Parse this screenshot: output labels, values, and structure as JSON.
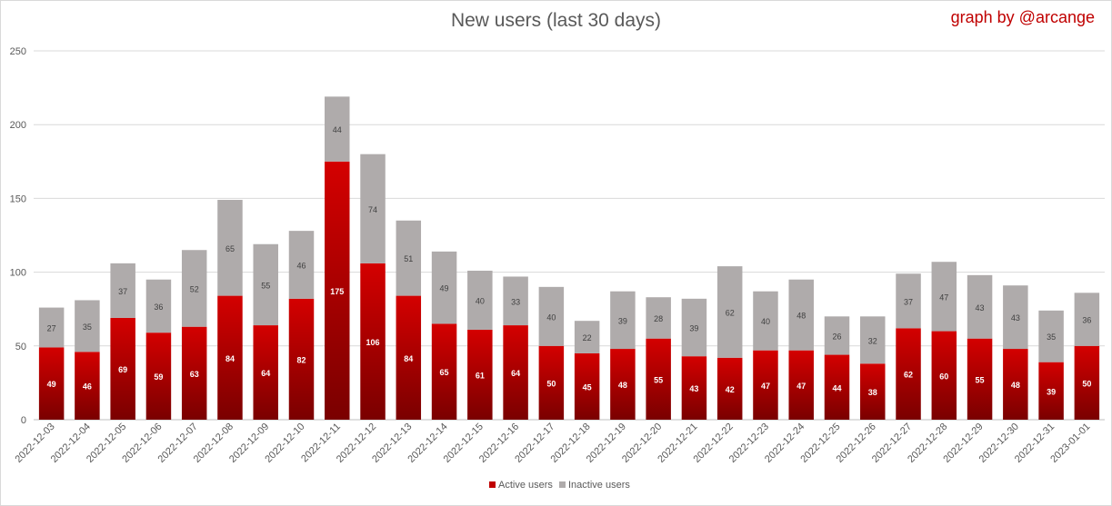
{
  "chart_data": {
    "type": "bar",
    "stacked": true,
    "title": "New users (last 30 days)",
    "credit": "graph by @arcange",
    "categories": [
      "2022-12-03",
      "2022-12-04",
      "2022-12-05",
      "2022-12-06",
      "2022-12-07",
      "2022-12-08",
      "2022-12-09",
      "2022-12-10",
      "2022-12-11",
      "2022-12-12",
      "2022-12-13",
      "2022-12-14",
      "2022-12-15",
      "2022-12-16",
      "2022-12-17",
      "2022-12-18",
      "2022-12-19",
      "2022-12-20",
      "2022-12-21",
      "2022-12-22",
      "2022-12-23",
      "2022-12-24",
      "2022-12-25",
      "2022-12-26",
      "2022-12-27",
      "2022-12-28",
      "2022-12-29",
      "2022-12-30",
      "2022-12-31",
      "2023-01-01"
    ],
    "series": [
      {
        "name": "Active users",
        "color": "#c00000",
        "values": [
          49,
          46,
          69,
          59,
          63,
          84,
          64,
          82,
          175,
          106,
          84,
          65,
          61,
          64,
          50,
          45,
          48,
          55,
          43,
          42,
          47,
          47,
          44,
          38,
          62,
          60,
          55,
          48,
          39,
          50
        ]
      },
      {
        "name": "Inactive users",
        "color": "#afabab",
        "values": [
          27,
          35,
          37,
          36,
          52,
          65,
          55,
          46,
          44,
          74,
          51,
          49,
          40,
          33,
          40,
          22,
          39,
          28,
          39,
          62,
          40,
          48,
          26,
          32,
          37,
          47,
          43,
          43,
          35,
          36
        ]
      }
    ],
    "ylim": [
      0,
      250
    ],
    "yticks": [
      0,
      50,
      100,
      150,
      200,
      250
    ],
    "grid": true,
    "legend": "bottom",
    "xlabel": "",
    "ylabel": ""
  }
}
